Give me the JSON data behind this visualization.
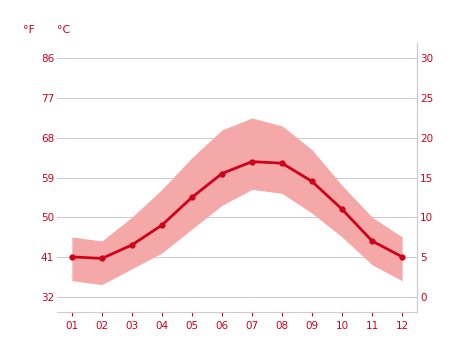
{
  "months": [
    1,
    2,
    3,
    4,
    5,
    6,
    7,
    8,
    9,
    10,
    11,
    12
  ],
  "month_labels": [
    "01",
    "02",
    "03",
    "04",
    "05",
    "06",
    "07",
    "08",
    "09",
    "10",
    "11",
    "12"
  ],
  "mean_temp_c": [
    5.0,
    4.8,
    6.5,
    9.0,
    12.5,
    15.5,
    17.0,
    16.8,
    14.5,
    11.0,
    7.0,
    5.0
  ],
  "max_temp_c": [
    7.5,
    7.0,
    10.0,
    13.5,
    17.5,
    21.0,
    22.5,
    21.5,
    18.5,
    14.0,
    10.0,
    7.5
  ],
  "min_temp_c": [
    2.0,
    1.5,
    3.5,
    5.5,
    8.5,
    11.5,
    13.5,
    13.0,
    10.5,
    7.5,
    4.0,
    2.0
  ],
  "yticks_c": [
    0,
    5,
    10,
    15,
    20,
    25,
    30
  ],
  "yticks_f": [
    32,
    41,
    50,
    59,
    68,
    77,
    86
  ],
  "ylim_c": [
    -2.0,
    32
  ],
  "xlim": [
    0.5,
    12.5
  ],
  "line_color": "#d0021b",
  "band_color": "#f5a8a8",
  "grid_color": "#cccccc",
  "tick_color": "#d0021b",
  "background_color": "#ffffff",
  "label_f": "°F",
  "label_c": "°C",
  "marker": "o",
  "marker_size": 3.5,
  "line_width": 2.0,
  "tick_fontsize": 7.5,
  "label_fontsize": 8
}
